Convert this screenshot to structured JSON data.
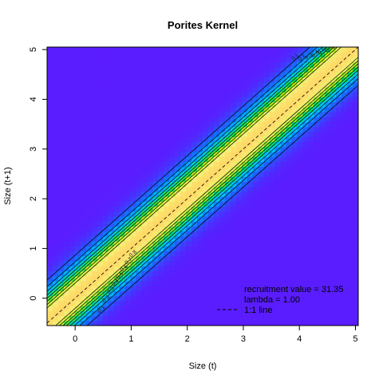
{
  "chart_data": {
    "type": "heatmap",
    "title": "Porites Kernel",
    "xlabel": "Size (t)",
    "ylabel": "Size (t+1)",
    "xlim": [
      -0.5,
      5.05
    ],
    "ylim": [
      -0.55,
      5.05
    ],
    "x_ticks": [
      0,
      1,
      2,
      3,
      4,
      5
    ],
    "y_ticks": [
      0,
      1,
      2,
      3,
      4,
      5
    ],
    "x_tick_labels": [
      "0",
      "1",
      "2",
      "3",
      "4",
      "5"
    ],
    "y_tick_labels": [
      "0",
      "1",
      "2",
      "3",
      "4",
      "5"
    ],
    "grid": false,
    "kernel": {
      "band_center_offset": 0.05,
      "band_sd": 0.38,
      "peak": 1.0,
      "grid_cells": 56
    },
    "color_scale": [
      "#5a1dff",
      "#0f73ff",
      "#00c8ff",
      "#00e15a",
      "#b4f014",
      "#f5f07a",
      "#ffd966"
    ],
    "contour_levels": [
      0.1,
      0.2,
      0.3,
      0.4,
      0.5,
      0.6,
      0.7,
      0.8
    ],
    "contour_labels": [
      "0.1",
      "0.2",
      "0.3",
      "0.4",
      "0.5",
      "0.6",
      "0.7",
      "0.8"
    ],
    "legend": {
      "position": "bottom-right",
      "entries": [
        {
          "text": "recruitment value = 31.35",
          "line": "none"
        },
        {
          "text": "lambda = 1.00",
          "line": "none"
        },
        {
          "text": "1:1 line",
          "line": "dashed"
        }
      ]
    }
  }
}
